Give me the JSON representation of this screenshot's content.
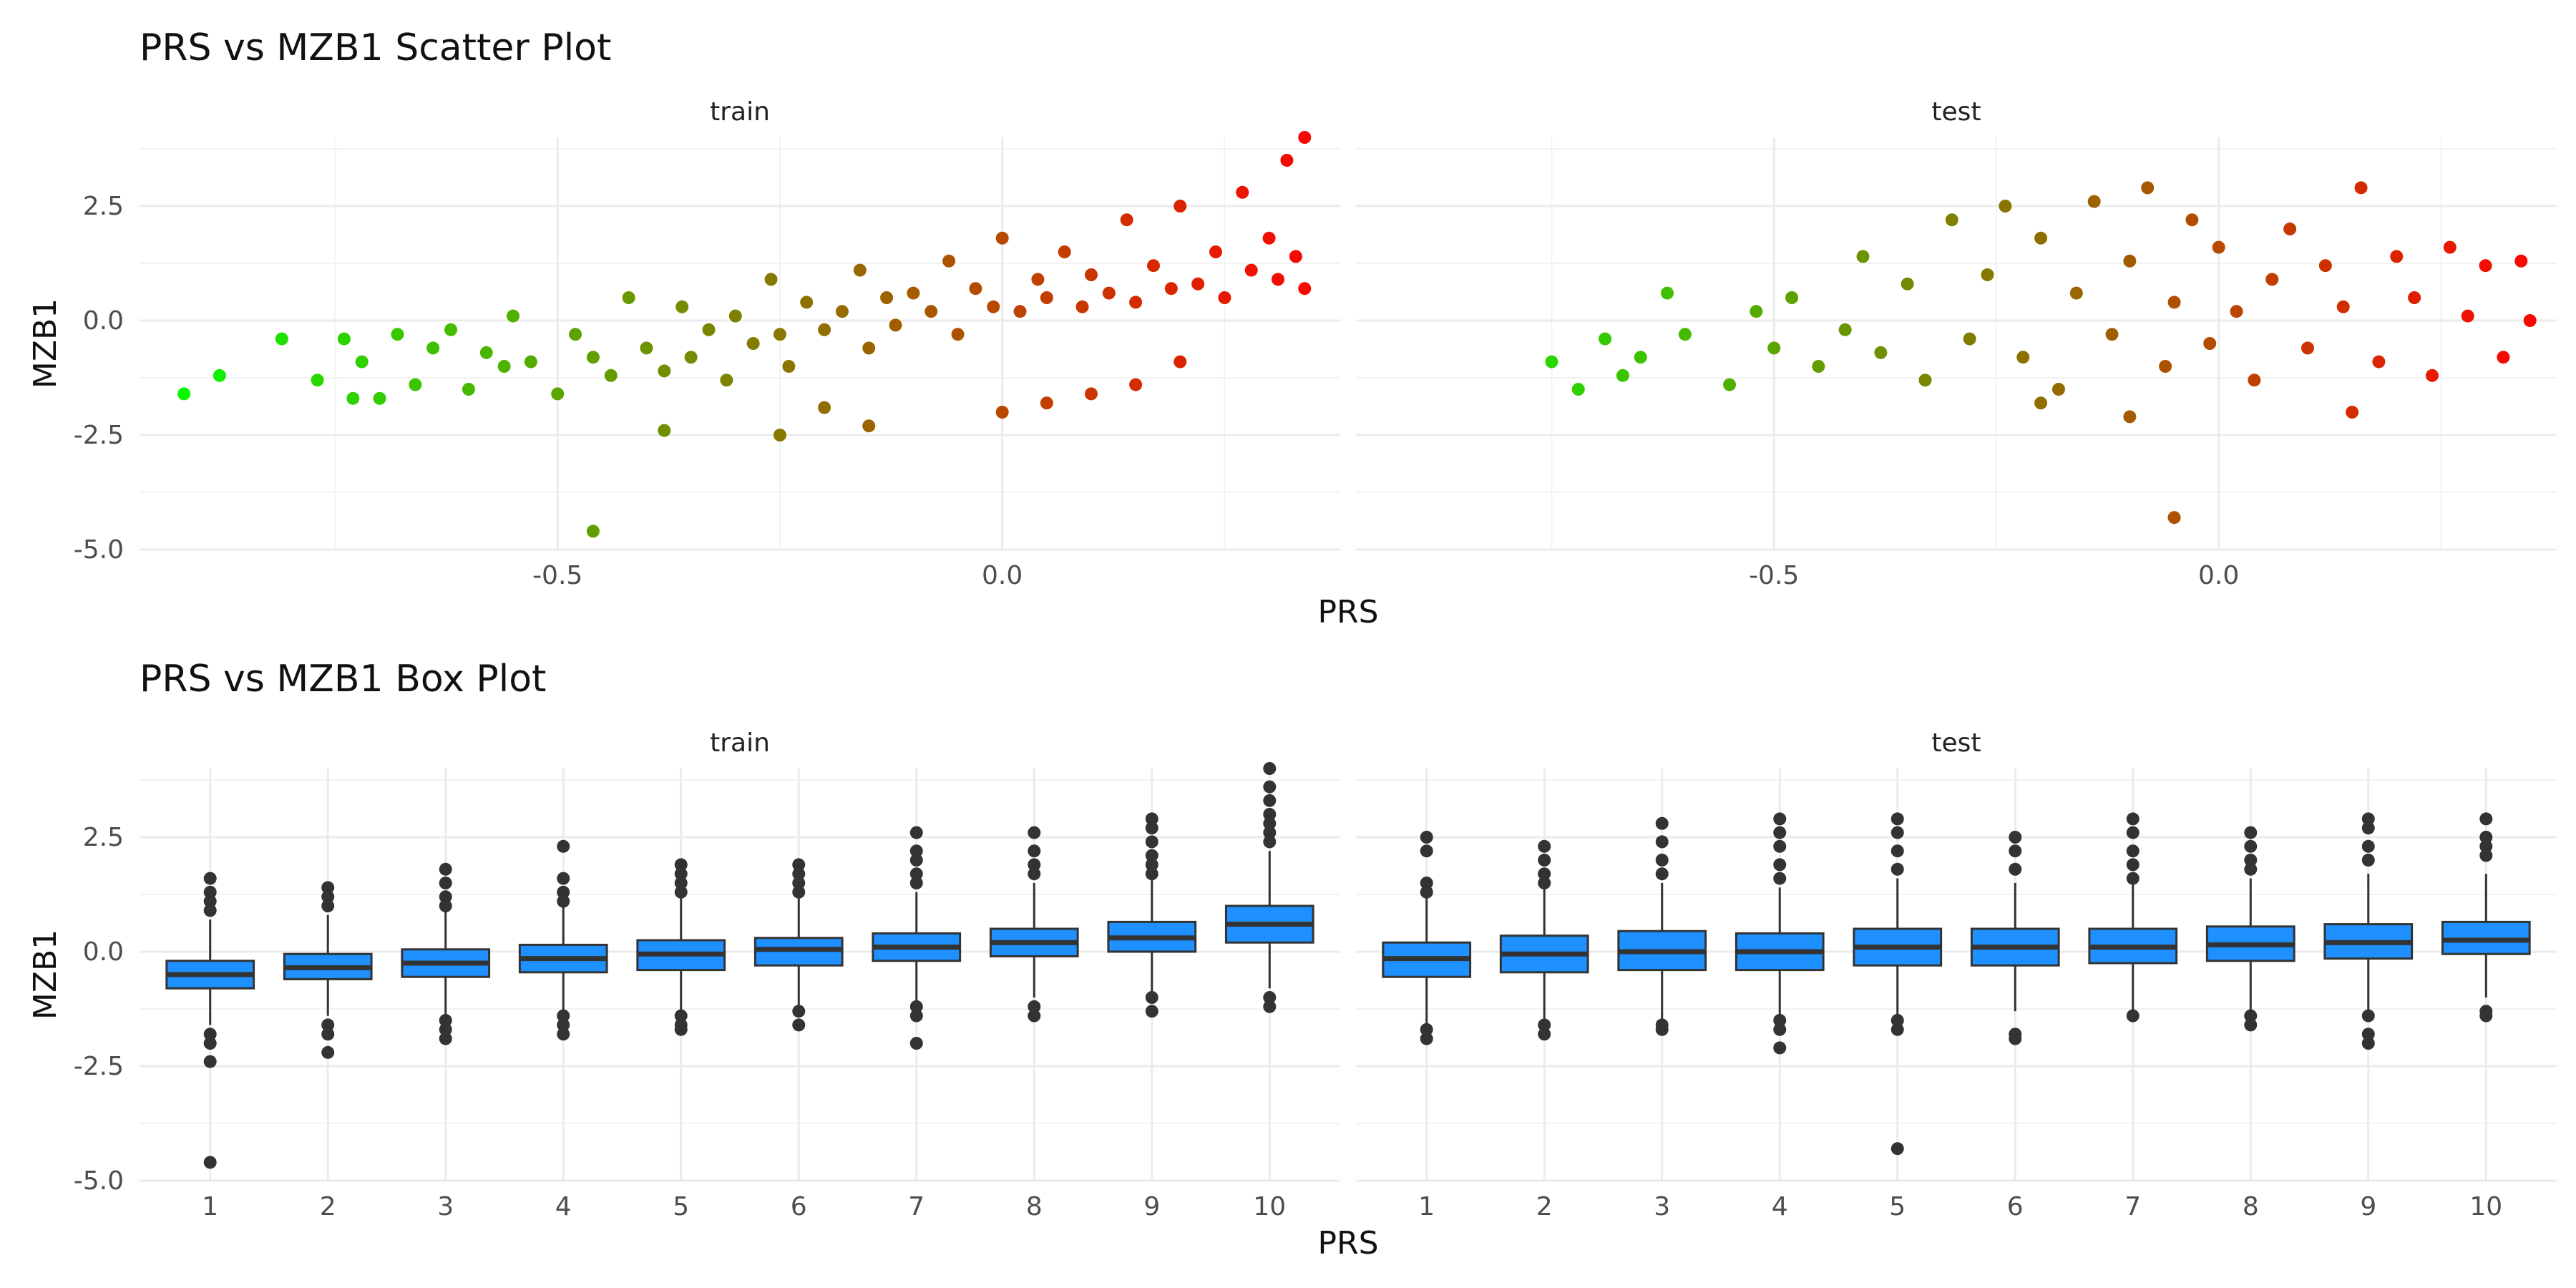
{
  "figure": {
    "scatter_title": "PRS vs MZB1 Scatter Plot",
    "box_title": "PRS vs MZB1 Box Plot",
    "xlabel": "PRS",
    "ylabel": "MZB1",
    "panels": [
      "train",
      "test"
    ]
  },
  "chart_data": [
    {
      "type": "scatter",
      "title": "PRS vs MZB1 Scatter Plot",
      "xlabel": "PRS",
      "ylabel": "MZB1",
      "facets": [
        "train",
        "test"
      ],
      "xlim": [
        -0.97,
        0.38
      ],
      "ylim": [
        -5.0,
        4.0
      ],
      "x_ticks": [
        -0.5,
        0.0
      ],
      "x_tick_labels": [
        "-0.5",
        "0.0"
      ],
      "y_ticks": [
        -5.0,
        -2.5,
        0.0,
        2.5
      ],
      "y_tick_labels": [
        "-5.0",
        "-2.5",
        "0.0",
        "2.5"
      ],
      "grid": true,
      "color_scale": {
        "low": "#00ff00",
        "high": "#ff0000"
      },
      "series": [
        {
          "facet": "train",
          "x": [
            -0.92,
            -0.88,
            -0.81,
            -0.77,
            -0.74,
            -0.73,
            -0.72,
            -0.7,
            -0.68,
            -0.66,
            -0.64,
            -0.62,
            -0.6,
            -0.58,
            -0.56,
            -0.55,
            -0.53,
            -0.5,
            -0.48,
            -0.46,
            -0.44,
            -0.42,
            -0.4,
            -0.38,
            -0.36,
            -0.35,
            -0.33,
            -0.31,
            -0.3,
            -0.28,
            -0.26,
            -0.25,
            -0.24,
            -0.22,
            -0.2,
            -0.18,
            -0.16,
            -0.15,
            -0.13,
            -0.12,
            -0.1,
            -0.08,
            -0.06,
            -0.05,
            -0.03,
            -0.01,
            0.0,
            0.02,
            0.04,
            0.05,
            0.07,
            0.09,
            0.1,
            0.12,
            0.14,
            0.15,
            0.17,
            0.19,
            0.2,
            0.22,
            0.24,
            0.25,
            0.27,
            0.28,
            0.3,
            0.31,
            0.32,
            0.33,
            0.34,
            0.34,
            -0.46,
            -0.38,
            -0.25,
            0.05,
            0.1,
            0.15,
            -0.15,
            -0.2,
            0.0,
            0.2
          ],
          "y": [
            -1.6,
            -1.2,
            -0.4,
            -1.3,
            -0.4,
            -1.7,
            -0.9,
            -1.7,
            -0.3,
            -1.4,
            -0.6,
            -0.2,
            -1.5,
            -0.7,
            -1.0,
            0.1,
            -0.9,
            -1.6,
            -0.3,
            -0.8,
            -1.2,
            0.5,
            -0.6,
            -1.1,
            0.3,
            -0.8,
            -0.2,
            -1.3,
            0.1,
            -0.5,
            0.9,
            -0.3,
            -1.0,
            0.4,
            -0.2,
            0.2,
            1.1,
            -0.6,
            0.5,
            -0.1,
            0.6,
            0.2,
            1.3,
            -0.3,
            0.7,
            0.3,
            1.8,
            0.2,
            0.9,
            0.5,
            1.5,
            0.3,
            1.0,
            0.6,
            2.2,
            0.4,
            1.2,
            0.7,
            2.5,
            0.8,
            1.5,
            0.5,
            2.8,
            1.1,
            1.8,
            0.9,
            3.5,
            1.4,
            4.0,
            0.7,
            -4.6,
            -2.4,
            -2.5,
            -1.8,
            -1.6,
            -1.4,
            -2.3,
            -1.9,
            -2.0,
            -0.9
          ]
        },
        {
          "facet": "test",
          "x": [
            -0.75,
            -0.72,
            -0.69,
            -0.67,
            -0.65,
            -0.62,
            -0.6,
            -0.55,
            -0.52,
            -0.5,
            -0.48,
            -0.45,
            -0.42,
            -0.4,
            -0.38,
            -0.35,
            -0.33,
            -0.3,
            -0.28,
            -0.26,
            -0.24,
            -0.22,
            -0.2,
            -0.18,
            -0.16,
            -0.14,
            -0.12,
            -0.1,
            -0.08,
            -0.06,
            -0.05,
            -0.03,
            -0.01,
            0.0,
            0.02,
            0.04,
            0.06,
            0.08,
            0.1,
            0.12,
            0.14,
            0.16,
            0.18,
            0.2,
            0.22,
            0.24,
            0.26,
            0.28,
            0.3,
            0.32,
            0.34,
            0.35,
            -0.05,
            -0.1,
            0.15,
            -0.2
          ],
          "y": [
            -0.9,
            -1.5,
            -0.4,
            -1.2,
            -0.8,
            0.6,
            -0.3,
            -1.4,
            0.2,
            -0.6,
            0.5,
            -1.0,
            -0.2,
            1.4,
            -0.7,
            0.8,
            -1.3,
            2.2,
            -0.4,
            1.0,
            2.5,
            -0.8,
            1.8,
            -1.5,
            0.6,
            2.6,
            -0.3,
            1.3,
            2.9,
            -1.0,
            0.4,
            2.2,
            -0.5,
            1.6,
            0.2,
            -1.3,
            0.9,
            2.0,
            -0.6,
            1.2,
            0.3,
            2.9,
            -0.9,
            1.4,
            0.5,
            -1.2,
            1.6,
            0.1,
            1.2,
            -0.8,
            1.3,
            0.0,
            -4.3,
            -2.1,
            -2.0,
            -1.8
          ]
        }
      ]
    },
    {
      "type": "box",
      "title": "PRS vs MZB1 Box Plot",
      "xlabel": "PRS",
      "ylabel": "MZB1",
      "facets": [
        "train",
        "test"
      ],
      "categories": [
        "1",
        "2",
        "3",
        "4",
        "5",
        "6",
        "7",
        "8",
        "9",
        "10"
      ],
      "ylim": [
        -5.0,
        4.0
      ],
      "y_ticks": [
        -5.0,
        -2.5,
        0.0,
        2.5
      ],
      "y_tick_labels": [
        "-5.0",
        "-2.5",
        "0.0",
        "2.5"
      ],
      "fill": "#1e90ff",
      "grid": true,
      "series": [
        {
          "facet": "train",
          "boxes": [
            {
              "q1": -0.8,
              "median": -0.5,
              "q3": -0.2,
              "lower": -1.6,
              "upper": 0.7,
              "outliers": [
                1.6,
                1.3,
                1.1,
                0.9,
                -1.8,
                -2.0,
                -2.4,
                -4.6
              ]
            },
            {
              "q1": -0.6,
              "median": -0.35,
              "q3": -0.05,
              "lower": -1.4,
              "upper": 0.8,
              "outliers": [
                1.4,
                1.2,
                1.0,
                -1.6,
                -1.8,
                -2.2
              ]
            },
            {
              "q1": -0.55,
              "median": -0.25,
              "q3": 0.05,
              "lower": -1.4,
              "upper": 0.9,
              "outliers": [
                1.8,
                1.5,
                1.2,
                1.0,
                -1.5,
                -1.7,
                -1.9
              ]
            },
            {
              "q1": -0.45,
              "median": -0.15,
              "q3": 0.15,
              "lower": -1.3,
              "upper": 1.0,
              "outliers": [
                2.3,
                1.6,
                1.3,
                1.1,
                -1.4,
                -1.6,
                -1.8
              ]
            },
            {
              "q1": -0.4,
              "median": -0.05,
              "q3": 0.25,
              "lower": -1.3,
              "upper": 1.2,
              "outliers": [
                1.9,
                1.7,
                1.5,
                1.3,
                -1.4,
                -1.6,
                -1.7
              ]
            },
            {
              "q1": -0.3,
              "median": 0.05,
              "q3": 0.3,
              "lower": -1.2,
              "upper": 1.2,
              "outliers": [
                1.9,
                1.7,
                1.5,
                1.3,
                -1.3,
                -1.6
              ]
            },
            {
              "q1": -0.2,
              "median": 0.1,
              "q3": 0.4,
              "lower": -1.1,
              "upper": 1.3,
              "outliers": [
                2.6,
                2.2,
                2.0,
                1.7,
                1.5,
                -1.2,
                -1.4,
                -2.0
              ]
            },
            {
              "q1": -0.1,
              "median": 0.2,
              "q3": 0.5,
              "lower": -1.0,
              "upper": 1.5,
              "outliers": [
                2.6,
                2.2,
                1.9,
                1.7,
                -1.2,
                -1.4
              ]
            },
            {
              "q1": 0.0,
              "median": 0.3,
              "q3": 0.65,
              "lower": -0.9,
              "upper": 1.6,
              "outliers": [
                2.9,
                2.7,
                2.4,
                2.1,
                1.9,
                1.7,
                -1.0,
                -1.3
              ]
            },
            {
              "q1": 0.2,
              "median": 0.6,
              "q3": 1.0,
              "lower": -0.8,
              "upper": 2.2,
              "outliers": [
                4.0,
                3.6,
                3.3,
                3.0,
                2.8,
                2.6,
                2.4,
                -1.0,
                -1.2
              ]
            }
          ]
        },
        {
          "facet": "test",
          "boxes": [
            {
              "q1": -0.55,
              "median": -0.15,
              "q3": 0.2,
              "lower": -1.6,
              "upper": 1.2,
              "outliers": [
                2.5,
                2.2,
                1.5,
                1.3,
                -1.7,
                -1.9
              ]
            },
            {
              "q1": -0.45,
              "median": -0.05,
              "q3": 0.35,
              "lower": -1.5,
              "upper": 1.4,
              "outliers": [
                2.3,
                2.0,
                1.7,
                1.5,
                -1.6,
                -1.8
              ]
            },
            {
              "q1": -0.4,
              "median": 0.0,
              "q3": 0.45,
              "lower": -1.5,
              "upper": 1.5,
              "outliers": [
                2.8,
                2.4,
                2.0,
                1.7,
                -1.6,
                -1.7
              ]
            },
            {
              "q1": -0.4,
              "median": 0.0,
              "q3": 0.4,
              "lower": -1.4,
              "upper": 1.4,
              "outliers": [
                2.9,
                2.6,
                2.3,
                1.9,
                1.6,
                -1.5,
                -1.7,
                -2.1
              ]
            },
            {
              "q1": -0.3,
              "median": 0.1,
              "q3": 0.5,
              "lower": -1.4,
              "upper": 1.6,
              "outliers": [
                2.9,
                2.6,
                2.2,
                1.8,
                -1.5,
                -1.7,
                -4.3
              ]
            },
            {
              "q1": -0.3,
              "median": 0.1,
              "q3": 0.5,
              "lower": -1.3,
              "upper": 1.5,
              "outliers": [
                2.5,
                2.2,
                1.8,
                -1.8,
                -1.9
              ]
            },
            {
              "q1": -0.25,
              "median": 0.1,
              "q3": 0.5,
              "lower": -1.3,
              "upper": 1.5,
              "outliers": [
                2.9,
                2.6,
                2.2,
                1.9,
                1.6,
                -1.4
              ]
            },
            {
              "q1": -0.2,
              "median": 0.15,
              "q3": 0.55,
              "lower": -1.3,
              "upper": 1.6,
              "outliers": [
                2.6,
                2.3,
                2.0,
                1.8,
                -1.4,
                -1.6
              ]
            },
            {
              "q1": -0.15,
              "median": 0.2,
              "q3": 0.6,
              "lower": -1.3,
              "upper": 1.7,
              "outliers": [
                2.9,
                2.7,
                2.3,
                2.0,
                -1.4,
                -1.8,
                -2.0
              ]
            },
            {
              "q1": -0.05,
              "median": 0.25,
              "q3": 0.65,
              "lower": -1.0,
              "upper": 1.7,
              "outliers": [
                2.9,
                2.5,
                2.3,
                2.1,
                -1.3,
                -1.4
              ]
            }
          ]
        }
      ]
    }
  ]
}
